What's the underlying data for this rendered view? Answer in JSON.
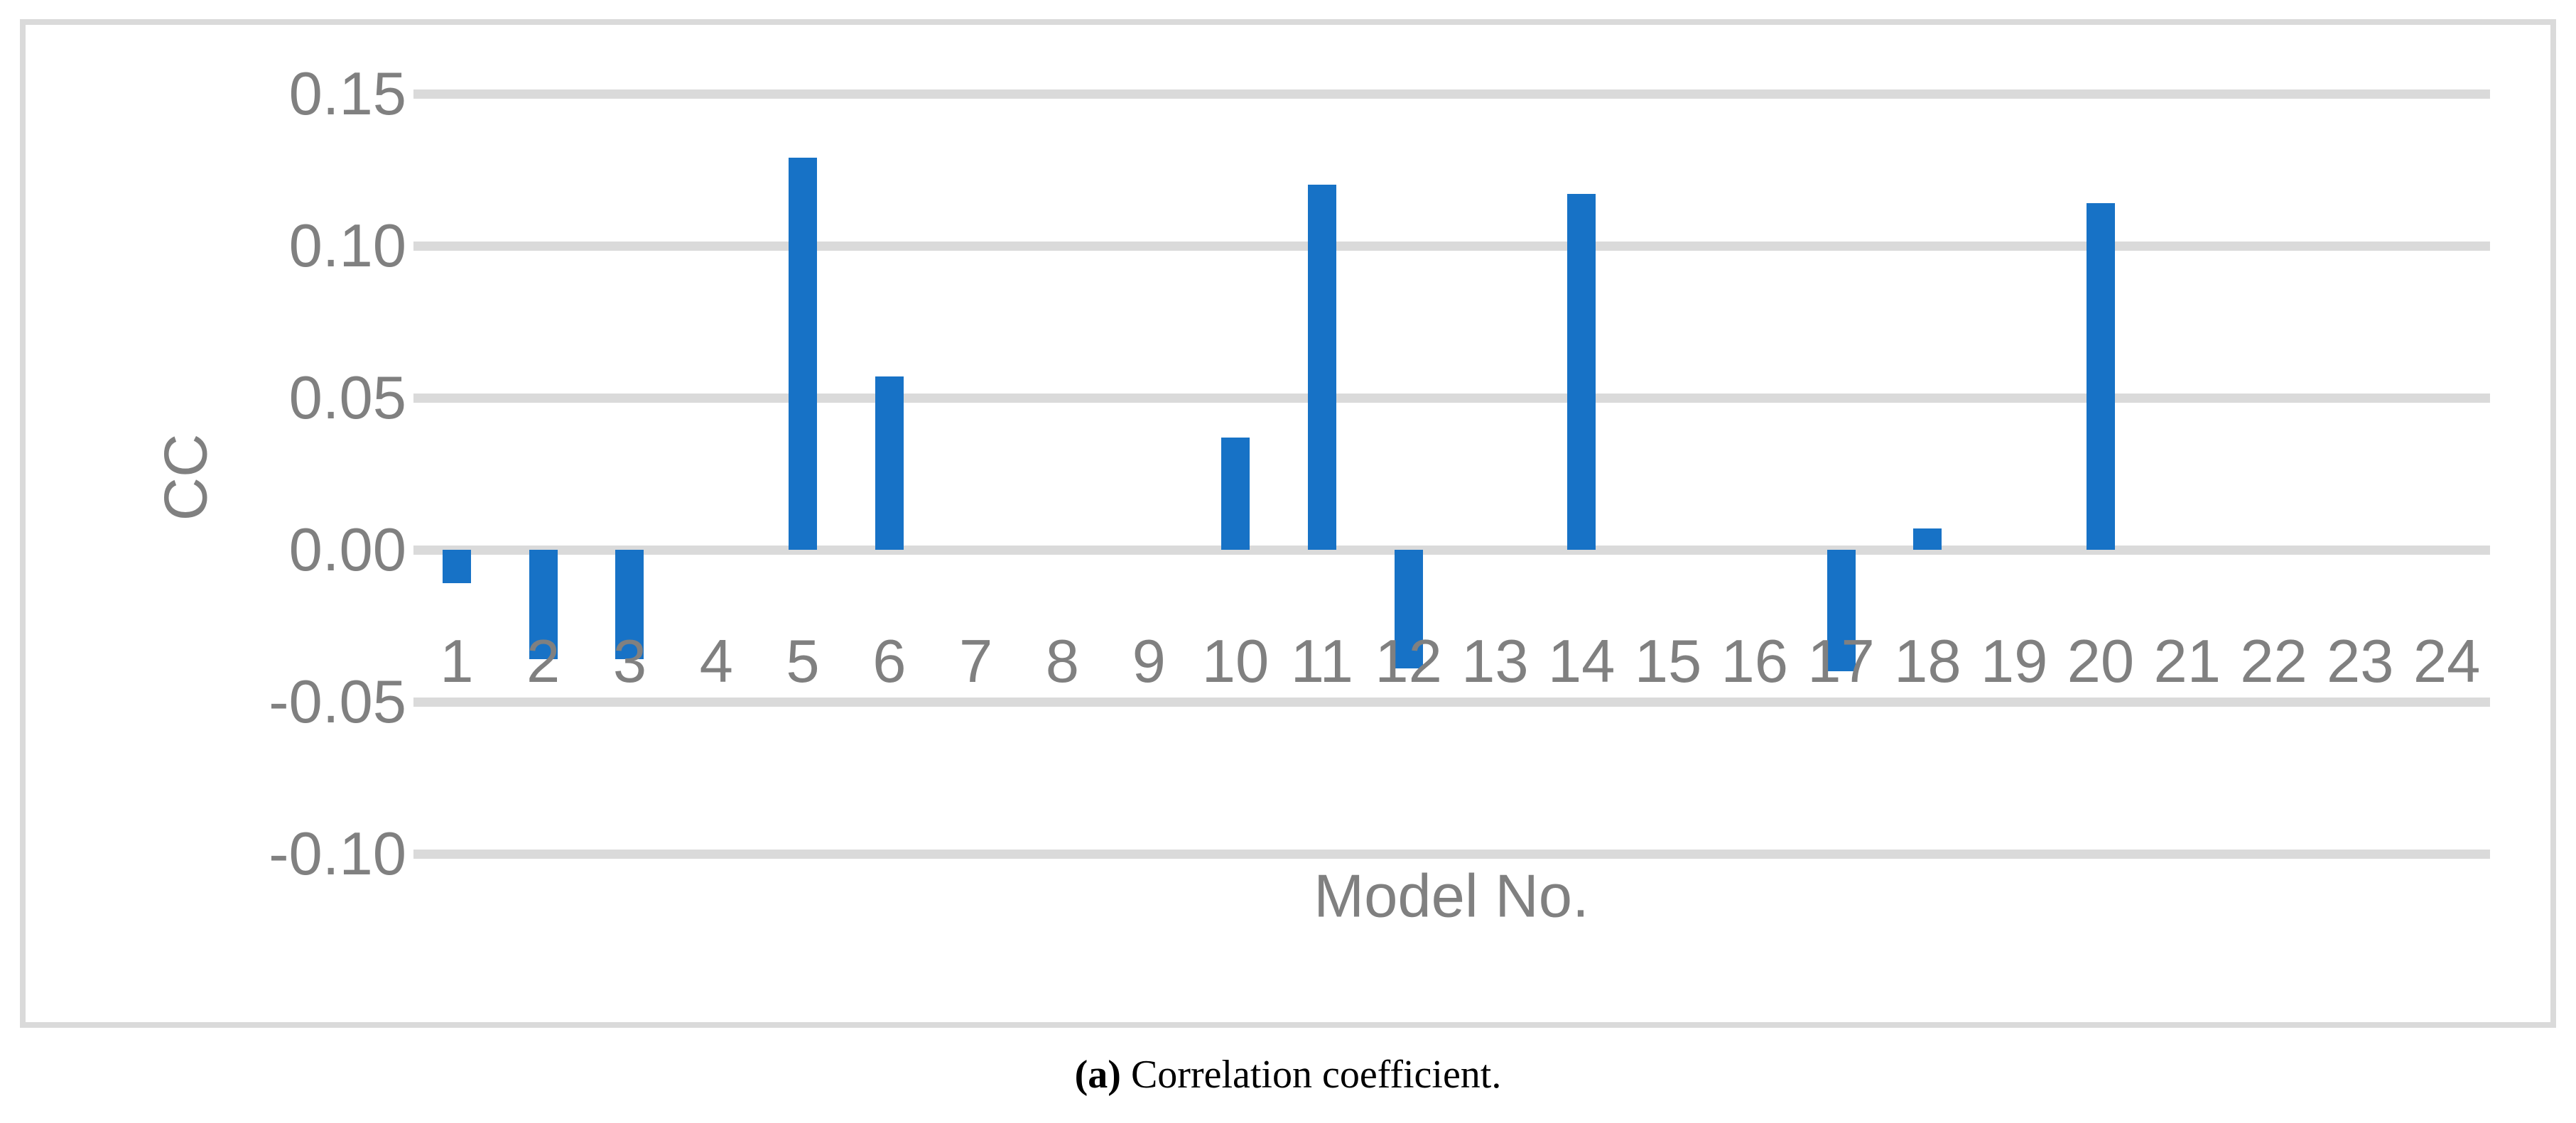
{
  "chart_data": {
    "type": "bar",
    "title": "",
    "xlabel": "Model No.",
    "ylabel": "CC",
    "categories": [
      "1",
      "2",
      "3",
      "4",
      "5",
      "6",
      "7",
      "8",
      "9",
      "10",
      "11",
      "12",
      "13",
      "14",
      "15",
      "16",
      "17",
      "18",
      "19",
      "20",
      "21",
      "22",
      "23",
      "24"
    ],
    "values": [
      -0.011,
      -0.036,
      -0.036,
      0,
      0.129,
      0.057,
      0,
      0,
      0,
      0.037,
      0.12,
      -0.039,
      0,
      0.117,
      0,
      0,
      -0.04,
      0.007,
      0,
      0.114,
      0,
      0,
      0,
      0
    ],
    "ylim": [
      -0.1,
      0.15
    ],
    "y_ticks": [
      0.15,
      0.1,
      0.05,
      0.0,
      -0.05,
      -0.1
    ],
    "y_tick_labels": [
      "0.15",
      "0.10",
      "0.05",
      "0.00",
      "-0.05",
      "-0.10"
    ],
    "grid": true,
    "legend": false,
    "bar_color": "#1772c6",
    "gridline_color": "#dadada",
    "axis_text_color": "#808080",
    "border_color": "#dadada"
  },
  "caption": {
    "label_bold": "(a)",
    "text": " Correlation coefficient."
  }
}
